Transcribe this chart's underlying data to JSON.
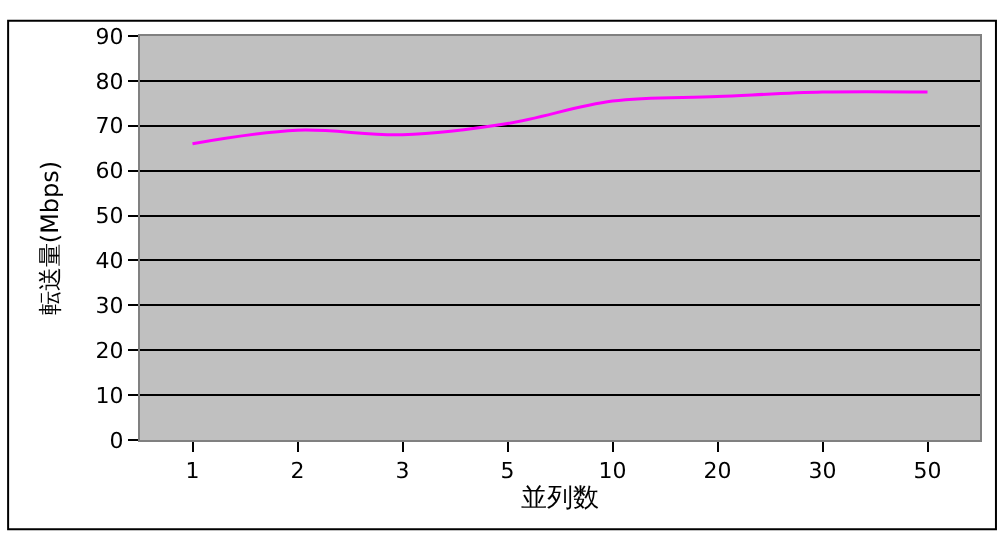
{
  "chart_data": {
    "type": "line",
    "xlabel": "並列数",
    "ylabel": "転送量(Mbps)",
    "categories": [
      "1",
      "2",
      "3",
      "5",
      "10",
      "20",
      "30",
      "50"
    ],
    "series": [
      {
        "color": "#ff00ff",
        "values": [
          66,
          69,
          68,
          70.5,
          75.5,
          76.5,
          77.5,
          77.5
        ]
      }
    ],
    "ylim": [
      0,
      90
    ],
    "yticks": [
      0,
      10,
      20,
      30,
      40,
      50,
      60,
      70,
      80,
      90
    ],
    "grid": "y",
    "legend": false,
    "marker": "none",
    "line_style": "solid"
  }
}
